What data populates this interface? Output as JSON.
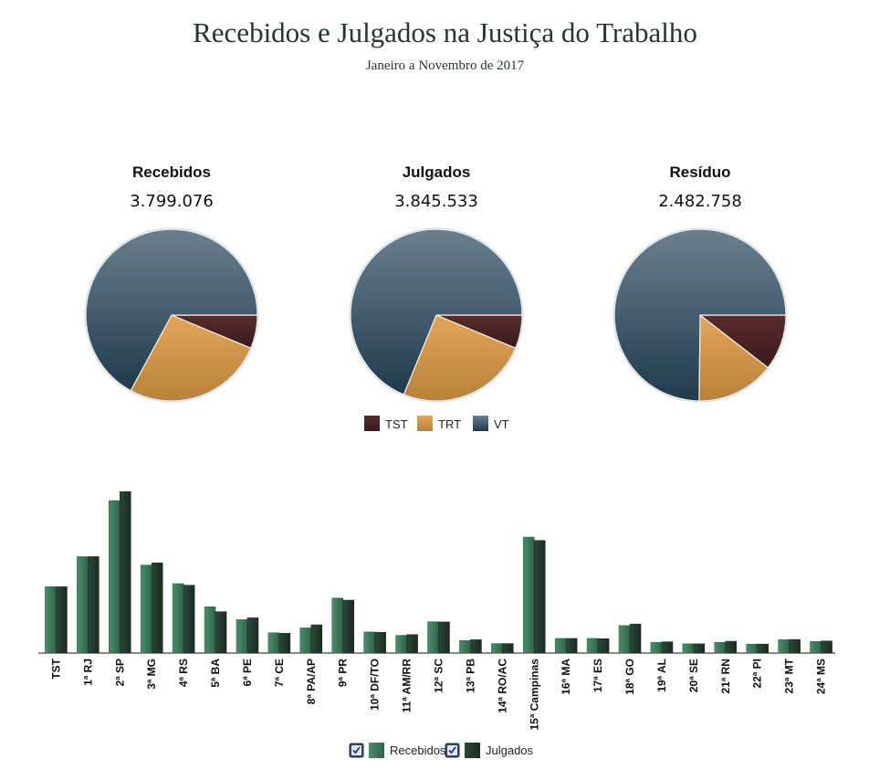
{
  "title": "Recebidos e Julgados na Justiça do Trabalho",
  "subtitle": "Janeiro a Novembro de 2017",
  "colors": {
    "TST": "#4a2325",
    "TRT": "#d89a4e",
    "VT": "#2b4960",
    "Recebidos": "#3c7a5a",
    "Julgados": "#22382d",
    "checkbox": "#3a4a6a"
  },
  "chart_data": [
    {
      "type": "pie",
      "title": "Recebidos",
      "total": "3.799.076",
      "slices": [
        {
          "label": "TST",
          "value": 0.063
        },
        {
          "label": "TRT",
          "value": 0.266
        },
        {
          "label": "VT",
          "value": 0.671
        }
      ]
    },
    {
      "type": "pie",
      "title": "Julgados",
      "total": "3.845.533",
      "slices": [
        {
          "label": "TST",
          "value": 0.063
        },
        {
          "label": "TRT",
          "value": 0.249
        },
        {
          "label": "VT",
          "value": 0.688
        }
      ]
    },
    {
      "type": "pie",
      "title": "Resíduo",
      "total": "2.482.758",
      "slices": [
        {
          "label": "TST",
          "value": 0.105
        },
        {
          "label": "TRT",
          "value": 0.147
        },
        {
          "label": "VT",
          "value": 0.748
        }
      ]
    },
    {
      "type": "bar",
      "categories": [
        "TST",
        "1ª RJ",
        "2ª SP",
        "3ª MG",
        "4ª RS",
        "5ª BA",
        "6ª PE",
        "7ª CE",
        "8ª PA/AP",
        "9ª PR",
        "10ª DF/TO",
        "11ª AM/RR",
        "12ª SC",
        "13ª PB",
        "14ª RO/AC",
        "15ª Campinas",
        "16ª MA",
        "17ª ES",
        "18ª GO",
        "19ª AL",
        "20ª SE",
        "21ª RN",
        "22ª PI",
        "23ª MT",
        "24ª MS"
      ],
      "series": [
        {
          "name": "Recebidos",
          "values": [
            258000,
            375000,
            593000,
            342000,
            270000,
            180000,
            130000,
            79000,
            98000,
            214000,
            82000,
            69000,
            122000,
            49000,
            37000,
            451000,
            57000,
            57000,
            107000,
            42000,
            36000,
            42000,
            35000,
            52000,
            45000
          ]
        },
        {
          "name": "Julgados",
          "values": [
            258000,
            375000,
            628000,
            351000,
            264000,
            161000,
            137000,
            77000,
            110000,
            206000,
            81000,
            72000,
            121000,
            52000,
            37000,
            438000,
            57000,
            56000,
            113000,
            44000,
            36000,
            46000,
            35000,
            53000,
            47000
          ]
        }
      ],
      "ylim": [
        0,
        650000
      ],
      "legend": "bottom",
      "grid": false
    }
  ]
}
